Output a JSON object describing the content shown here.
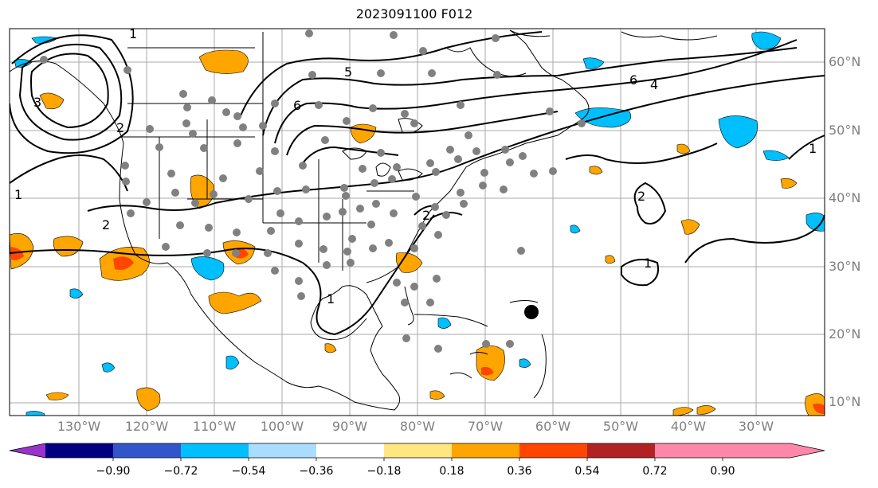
{
  "title": "2023091100 F012",
  "lat_labels": [
    "60°N",
    "50°N",
    "40°N",
    "30°N",
    "20°N",
    "10°N"
  ],
  "lon_labels": [
    "130°W",
    "120°W",
    "110°W",
    "100°W",
    "90°W",
    "80°W",
    "70°W",
    "60°W",
    "50°W",
    "40°W",
    "30°W"
  ],
  "map": {
    "extent": {
      "lon_min": -139,
      "lon_max": -19,
      "lat_min": 8,
      "lat_max": 65
    },
    "storm_marker": {
      "lon": -64,
      "lat": 23
    }
  },
  "contour_labels": [
    "1",
    "1",
    "1",
    "1",
    "1",
    "2",
    "2",
    "2",
    "2",
    "3",
    "4",
    "5",
    "6",
    "6"
  ],
  "colorbar": {
    "colors": [
      "#9933cc",
      "#000080",
      "#3355cc",
      "#00bfff",
      "#aaddff",
      "#ffffff",
      "#ffe680",
      "#ffa500",
      "#ff4500",
      "#b22222",
      "#ff88aa"
    ],
    "ticks": [
      "−0.90",
      "−0.72",
      "−0.54",
      "−0.36",
      "−0.18",
      "0.18",
      "0.36",
      "0.54",
      "0.72",
      "0.90"
    ]
  }
}
